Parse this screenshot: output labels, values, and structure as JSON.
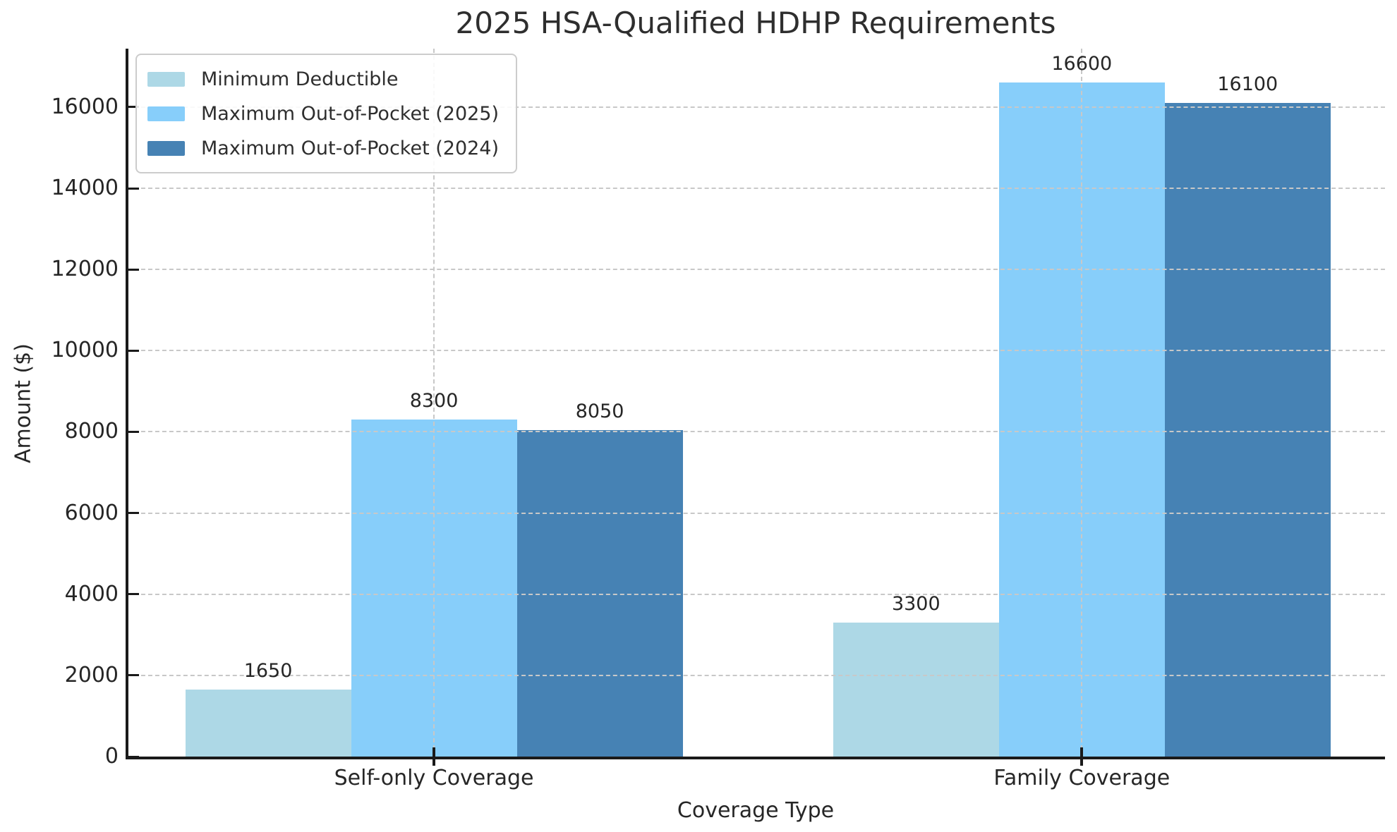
{
  "chart_data": {
    "type": "bar",
    "title": "2025 HSA-Qualified HDHP Requirements",
    "xlabel": "Coverage Type",
    "ylabel": "Amount ($)",
    "categories": [
      "Self-only Coverage",
      "Family Coverage"
    ],
    "series": [
      {
        "name": "Minimum Deductible",
        "color": "#ADD8E6",
        "values": [
          1650,
          3300
        ]
      },
      {
        "name": "Maximum Out-of-Pocket (2025)",
        "color": "#87CEFA",
        "values": [
          8300,
          16600
        ]
      },
      {
        "name": "Maximum Out-of-Pocket (2024)",
        "color": "#4682B4",
        "values": [
          8050,
          16100
        ]
      }
    ],
    "yticks": [
      0,
      2000,
      4000,
      6000,
      8000,
      10000,
      12000,
      14000,
      16000
    ],
    "ylim": [
      0,
      17440
    ],
    "grid": true,
    "grid_style": "dashed",
    "legend_position": "upper left",
    "bar_value_labels": true,
    "colors": {
      "axis": "#1a1a1a",
      "grid": "#c8c8c8",
      "text": "#262626",
      "background": "#ffffff"
    }
  }
}
